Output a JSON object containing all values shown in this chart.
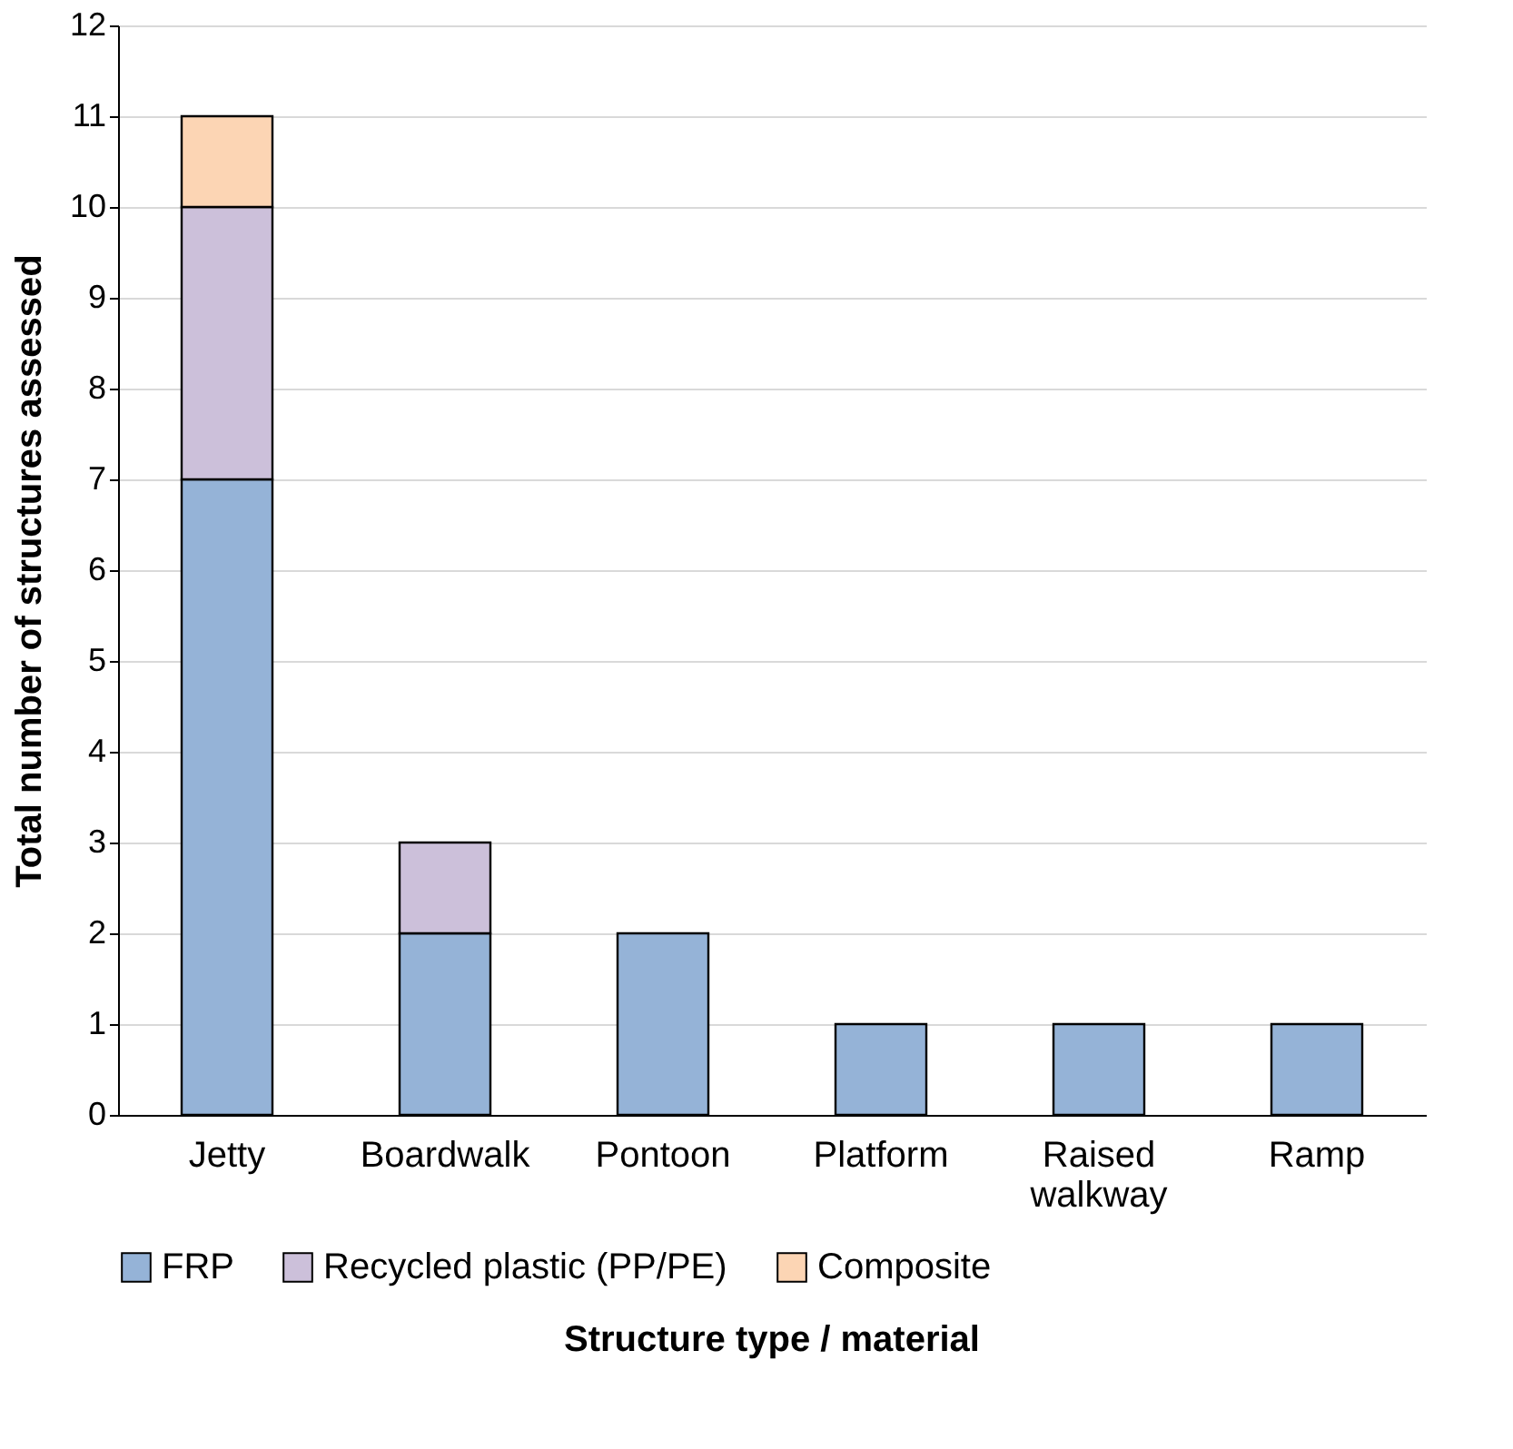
{
  "chart_data": {
    "type": "bar",
    "stacked": true,
    "xlabel": "Structure type / material",
    "ylabel": "Total number of structures assessed",
    "categories": [
      "Jetty",
      "Boardwalk",
      "Pontoon",
      "Platform",
      "Raised walkway",
      "Ramp"
    ],
    "series": [
      {
        "name": "FRP",
        "color": "#95b3d7",
        "values": [
          7,
          2,
          2,
          1,
          1,
          1
        ]
      },
      {
        "name": "Recycled plastic (PP/PE)",
        "color": "#ccc0da",
        "values": [
          3,
          1,
          null,
          null,
          null,
          null
        ]
      },
      {
        "name": "Composite",
        "color": "#fcd5b4",
        "values": [
          1,
          null,
          null,
          null,
          null,
          null
        ]
      }
    ],
    "ylim": [
      0,
      12
    ],
    "yticks": [
      0,
      1,
      2,
      3,
      4,
      5,
      6,
      7,
      8,
      9,
      10,
      11,
      12
    ],
    "grid": "y",
    "legend": "bottom"
  }
}
